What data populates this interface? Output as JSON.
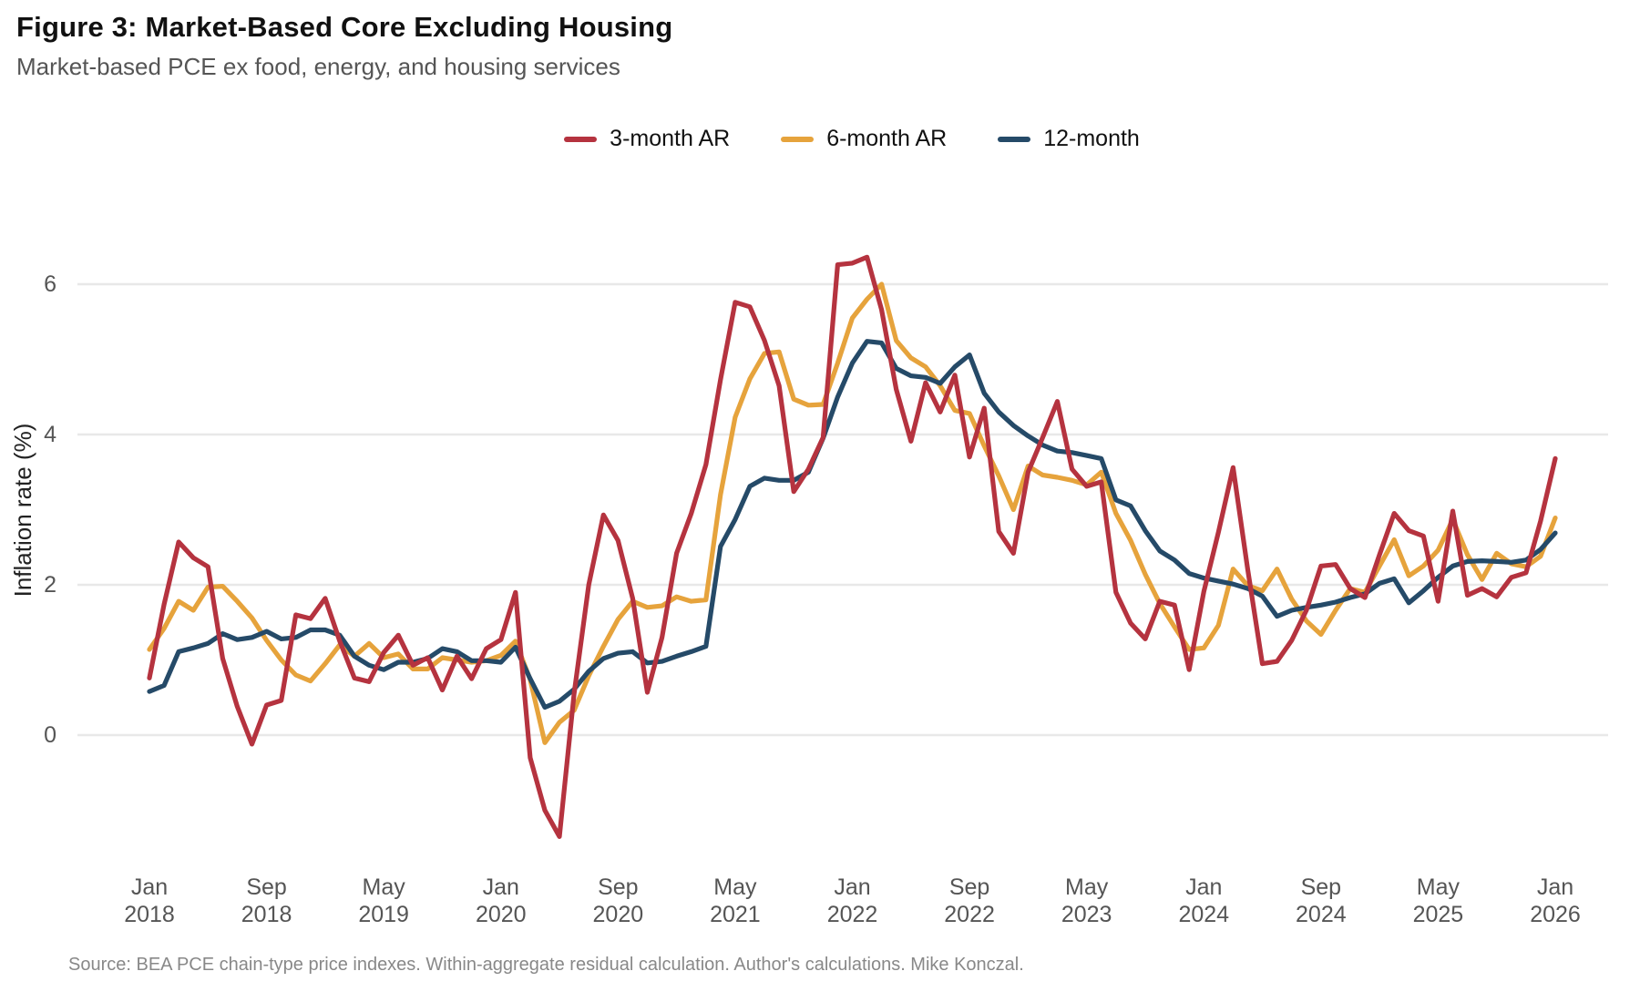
{
  "header": {
    "title": "Figure 3: Market-Based Core Excluding Housing",
    "subtitle": "Market-based PCE ex food, energy, and housing services"
  },
  "legend": [
    {
      "label": "3-month AR",
      "color": "#b5333f"
    },
    {
      "label": "6-month AR",
      "color": "#e6a33c"
    },
    {
      "label": "12-month",
      "color": "#254a68"
    }
  ],
  "source": {
    "text": "Source: BEA PCE chain-type price indexes. Within-aggregate residual calculation. Author's calculations. Mike Konczal."
  },
  "chart_data": {
    "type": "line",
    "ylabel": "Inflation rate (%)",
    "yticks": [
      0,
      2,
      4,
      6
    ],
    "ylim": [
      -1.6,
      6.6
    ],
    "grid": "horizontal",
    "grid_color": "#e8e8e8",
    "tick_color": "#555555",
    "x_start": "2018-01",
    "x_end": "2026-01",
    "x_monthly_points": 97,
    "x_tick_positions": [
      0,
      8,
      16,
      24,
      32,
      40,
      48,
      56,
      64,
      72,
      80,
      88,
      96
    ],
    "x_tick_labels": [
      [
        "Jan",
        "2018"
      ],
      [
        "Sep",
        "2018"
      ],
      [
        "May",
        "2019"
      ],
      [
        "Jan",
        "2020"
      ],
      [
        "Sep",
        "2020"
      ],
      [
        "May",
        "2021"
      ],
      [
        "Jan",
        "2022"
      ],
      [
        "Sep",
        "2022"
      ],
      [
        "May",
        "2023"
      ],
      [
        "Jan",
        "2024"
      ],
      [
        "Sep",
        "2024"
      ],
      [
        "May",
        "2025"
      ],
      [
        "Jan",
        "2026"
      ]
    ],
    "legend_position": "top-center",
    "series": [
      {
        "name": "3-month AR",
        "color": "#b5333f",
        "values": [
          0.76,
          1.74,
          2.57,
          2.36,
          2.24,
          1.02,
          0.38,
          -0.12,
          0.4,
          0.46,
          1.6,
          1.55,
          1.82,
          1.25,
          0.76,
          0.71,
          1.1,
          1.33,
          0.93,
          1.03,
          0.6,
          1.05,
          0.75,
          1.15,
          1.27,
          1.9,
          -0.3,
          -1.0,
          -1.35,
          0.55,
          2.0,
          2.93,
          2.59,
          1.82,
          0.57,
          1.3,
          2.42,
          2.95,
          3.6,
          4.73,
          5.76,
          5.7,
          5.25,
          4.65,
          3.24,
          3.54,
          3.96,
          6.26,
          6.28,
          6.36,
          5.66,
          4.6,
          3.91,
          4.69,
          4.3,
          4.79,
          3.7,
          4.35,
          2.71,
          2.42,
          3.5,
          3.96,
          4.44,
          3.54,
          3.31,
          3.37,
          1.9,
          1.49,
          1.28,
          1.78,
          1.73,
          0.87,
          1.91,
          2.7,
          3.56,
          2.2,
          0.95,
          0.98,
          1.26,
          1.66,
          2.25,
          2.27,
          1.95,
          1.83,
          2.4,
          2.95,
          2.72,
          2.65,
          1.78,
          2.98,
          1.86,
          1.95,
          1.84,
          2.1,
          2.16,
          2.85,
          3.68
        ]
      },
      {
        "name": "6-month AR",
        "color": "#e6a33c",
        "values": [
          1.14,
          1.42,
          1.78,
          1.66,
          1.97,
          1.98,
          1.78,
          1.56,
          1.26,
          1.0,
          0.8,
          0.72,
          0.95,
          1.2,
          1.05,
          1.22,
          1.03,
          1.08,
          0.88,
          0.88,
          1.03,
          1.0,
          0.97,
          0.99,
          1.06,
          1.25,
          0.74,
          -0.1,
          0.17,
          0.33,
          0.79,
          1.18,
          1.54,
          1.78,
          1.7,
          1.72,
          1.84,
          1.78,
          1.8,
          3.2,
          4.23,
          4.74,
          5.08,
          5.1,
          4.47,
          4.39,
          4.4,
          4.95,
          5.55,
          5.8,
          6.0,
          5.25,
          5.02,
          4.9,
          4.65,
          4.32,
          4.28,
          3.85,
          3.45,
          3.0,
          3.58,
          3.46,
          3.43,
          3.39,
          3.33,
          3.5,
          2.95,
          2.59,
          2.14,
          1.75,
          1.44,
          1.14,
          1.16,
          1.46,
          2.21,
          1.99,
          1.92,
          2.21,
          1.81,
          1.52,
          1.34,
          1.66,
          1.95,
          1.9,
          2.25,
          2.6,
          2.12,
          2.25,
          2.46,
          2.87,
          2.4,
          2.07,
          2.42,
          2.28,
          2.24,
          2.38,
          2.89
        ]
      },
      {
        "name": "12-month",
        "color": "#254a68",
        "values": [
          0.58,
          0.66,
          1.11,
          1.16,
          1.22,
          1.35,
          1.27,
          1.3,
          1.38,
          1.28,
          1.3,
          1.4,
          1.4,
          1.33,
          1.05,
          0.93,
          0.87,
          0.97,
          0.97,
          1.02,
          1.15,
          1.11,
          0.99,
          0.99,
          0.97,
          1.17,
          0.75,
          0.37,
          0.45,
          0.61,
          0.85,
          1.02,
          1.09,
          1.11,
          0.96,
          0.98,
          1.05,
          1.11,
          1.18,
          2.51,
          2.87,
          3.31,
          3.42,
          3.39,
          3.39,
          3.5,
          3.95,
          4.5,
          4.95,
          5.24,
          5.22,
          4.88,
          4.78,
          4.76,
          4.68,
          4.9,
          5.06,
          4.55,
          4.3,
          4.12,
          3.98,
          3.86,
          3.78,
          3.76,
          3.72,
          3.68,
          3.13,
          3.05,
          2.72,
          2.45,
          2.33,
          2.15,
          2.09,
          2.05,
          2.01,
          1.95,
          1.85,
          1.58,
          1.66,
          1.7,
          1.73,
          1.77,
          1.83,
          1.88,
          2.02,
          2.08,
          1.76,
          1.92,
          2.1,
          2.25,
          2.31,
          2.32,
          2.31,
          2.3,
          2.33,
          2.47,
          2.69
        ]
      }
    ]
  }
}
